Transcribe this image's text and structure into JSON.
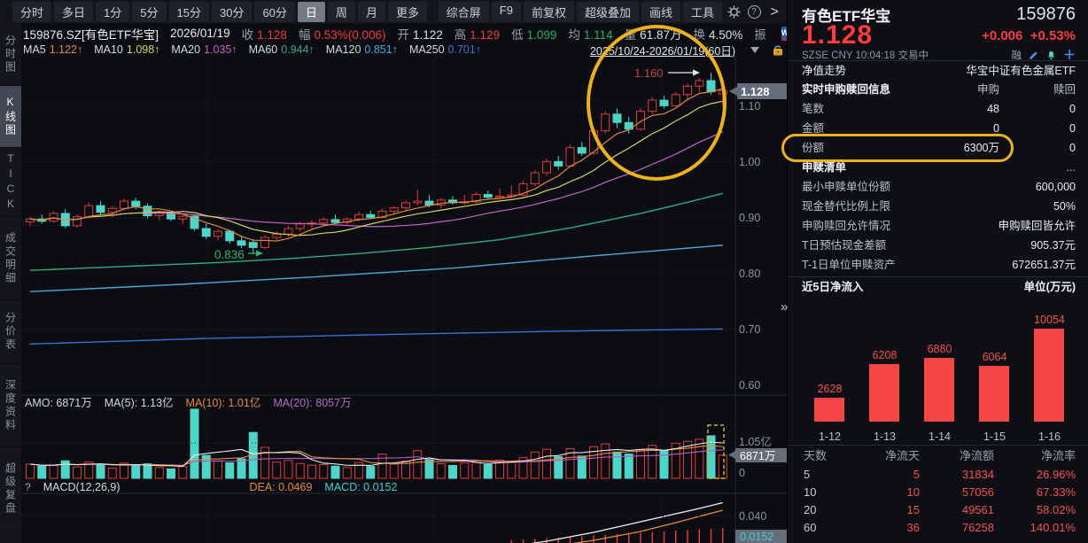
{
  "toolbar": {
    "left_items": [
      "分时",
      "多日",
      "1分",
      "5分",
      "15分",
      "30分",
      "60分",
      "日",
      "周",
      "月",
      "更多"
    ],
    "selected_item": "日",
    "right_items": [
      "综合屏",
      "F9",
      "前复权",
      "超级叠加",
      "画线",
      "工具"
    ],
    "help_icon": "?",
    "more_arrow": ">"
  },
  "info_row": {
    "symbol": "159876.SZ[有色ETF华宝]",
    "date": "2026/01/19",
    "fields": [
      {
        "label": "收",
        "value": "1.128",
        "color": "c-red"
      },
      {
        "label": "幅",
        "value": "0.53%(0.006)",
        "color": "c-red"
      },
      {
        "label": "开",
        "value": "1.122",
        "color": "c-white"
      },
      {
        "label": "高",
        "value": "1.129",
        "color": "c-red"
      },
      {
        "label": "低",
        "value": "1.099",
        "color": "c-green"
      },
      {
        "label": "均",
        "value": "1.114",
        "color": "c-green"
      },
      {
        "label": "量",
        "value": "61.87万",
        "color": "c-white"
      },
      {
        "label": "换",
        "value": "4.50%",
        "color": "c-white"
      },
      {
        "label": "振",
        "value": "",
        "color": "c-white"
      }
    ],
    "wp_badge": "WP"
  },
  "ma_row": {
    "items": [
      {
        "label": "MA5",
        "value": "1.122↑",
        "color": "#e08a3c"
      },
      {
        "label": "MA10",
        "value": "1.098↑",
        "color": "#d8d060"
      },
      {
        "label": "MA20",
        "value": "1.035↑",
        "color": "#c75fc7"
      },
      {
        "label": "MA60",
        "value": "0.944↑",
        "color": "#2fae7a"
      },
      {
        "label": "MA120",
        "value": "0.851↑",
        "color": "#4aa8dc"
      },
      {
        "label": "MA250",
        "value": "0.701↑",
        "color": "#3b6fd4"
      }
    ],
    "date_range": "2025/10/24-2026/01/19(60日)"
  },
  "sidebar": {
    "tabs": [
      {
        "label": "分时图",
        "selected": false
      },
      {
        "label": "K线图",
        "selected": true
      },
      {
        "label": "TICK",
        "selected": false
      },
      {
        "label": "成交明细",
        "selected": false
      },
      {
        "label": "分价表",
        "selected": false
      },
      {
        "label": "深度资料",
        "selected": false
      },
      {
        "label": "超级复盘",
        "selected": false
      }
    ]
  },
  "vol_legend": {
    "amo": "AMO: 6871万",
    "ma5": "MA(5): 1.13亿",
    "ma10": "MA(10): 1.01亿",
    "ma20": "MA(20): 8057万"
  },
  "macd_legend": {
    "help": "?",
    "name": "MACD(12,26,9)",
    "dea": "DEA: 0.0469",
    "macd": "MACD: 0.0152"
  },
  "chart_data": [
    {
      "type": "candlestick",
      "title": "159876.SZ 日K",
      "x_range": [
        "2025/10/24",
        "2026/01/19"
      ],
      "days": 60,
      "y_axis_ticks": [
        1.1,
        1.0,
        0.9,
        0.8,
        0.7,
        0.6
      ],
      "price_tag": "1.128",
      "annotations": {
        "high_label": "1.160",
        "low_label": "0.836"
      },
      "colors": {
        "up": "#e23b3b",
        "down": "#4ed5c8",
        "ma5": "#e08a3c",
        "ma10": "#d8d060",
        "ma20": "#c75fc7",
        "ma60": "#2fae7a",
        "ma120": "#4aa8dc",
        "ma250": "#3b6fd4",
        "volma5": "#e8eaee",
        "volma10": "#e78a3c",
        "volma20": "#b05fc0",
        "dif": "#f0f2f5",
        "dea": "#e78a3c",
        "hist": "#e23b3b",
        "circle": "#edb11c"
      },
      "candles": [
        [
          0.893,
          0.902,
          0.885,
          0.898
        ],
        [
          0.898,
          0.906,
          0.89,
          0.894
        ],
        [
          0.894,
          0.912,
          0.892,
          0.908
        ],
        [
          0.908,
          0.916,
          0.882,
          0.886
        ],
        [
          0.886,
          0.906,
          0.883,
          0.902
        ],
        [
          0.902,
          0.928,
          0.899,
          0.922
        ],
        [
          0.922,
          0.93,
          0.906,
          0.91
        ],
        [
          0.91,
          0.921,
          0.901,
          0.917
        ],
        [
          0.917,
          0.934,
          0.913,
          0.93
        ],
        [
          0.93,
          0.936,
          0.916,
          0.921
        ],
        [
          0.921,
          0.926,
          0.899,
          0.904
        ],
        [
          0.904,
          0.913,
          0.896,
          0.909
        ],
        [
          0.909,
          0.911,
          0.894,
          0.898
        ],
        [
          0.898,
          0.906,
          0.889,
          0.903
        ],
        [
          0.903,
          0.906,
          0.877,
          0.881
        ],
        [
          0.881,
          0.89,
          0.862,
          0.867
        ],
        [
          0.867,
          0.88,
          0.86,
          0.876
        ],
        [
          0.876,
          0.879,
          0.854,
          0.859
        ],
        [
          0.859,
          0.868,
          0.846,
          0.851
        ],
        [
          0.856,
          0.862,
          0.836,
          0.847
        ],
        [
          0.847,
          0.869,
          0.844,
          0.865
        ],
        [
          0.865,
          0.876,
          0.858,
          0.871
        ],
        [
          0.871,
          0.886,
          0.866,
          0.881
        ],
        [
          0.881,
          0.893,
          0.876,
          0.889
        ],
        [
          0.889,
          0.896,
          0.881,
          0.891
        ],
        [
          0.891,
          0.901,
          0.886,
          0.897
        ],
        [
          0.897,
          0.906,
          0.89,
          0.892
        ],
        [
          0.892,
          0.901,
          0.886,
          0.898
        ],
        [
          0.898,
          0.911,
          0.894,
          0.906
        ],
        [
          0.906,
          0.913,
          0.898,
          0.901
        ],
        [
          0.901,
          0.916,
          0.899,
          0.912
        ],
        [
          0.912,
          0.921,
          0.906,
          0.918
        ],
        [
          0.918,
          0.931,
          0.913,
          0.927
        ],
        [
          0.927,
          0.951,
          0.922,
          0.93
        ],
        [
          0.93,
          0.941,
          0.919,
          0.923
        ],
        [
          0.923,
          0.936,
          0.918,
          0.932
        ],
        [
          0.932,
          0.939,
          0.924,
          0.927
        ],
        [
          0.927,
          0.941,
          0.924,
          0.929
        ],
        [
          0.929,
          0.946,
          0.926,
          0.942
        ],
        [
          0.942,
          0.949,
          0.934,
          0.937
        ],
        [
          0.937,
          0.953,
          0.934,
          0.939
        ],
        [
          0.939,
          0.958,
          0.936,
          0.941
        ],
        [
          0.941,
          0.966,
          0.939,
          0.961
        ],
        [
          0.961,
          0.986,
          0.957,
          0.981
        ],
        [
          0.981,
          1.006,
          0.976,
          1.001
        ],
        [
          1.001,
          1.011,
          0.986,
          0.993
        ],
        [
          0.993,
          1.031,
          0.991,
          1.026
        ],
        [
          1.026,
          1.036,
          1.011,
          1.016
        ],
        [
          1.016,
          1.061,
          1.013,
          1.056
        ],
        [
          1.056,
          1.091,
          1.051,
          1.086
        ],
        [
          1.086,
          1.096,
          1.061,
          1.071
        ],
        [
          1.071,
          1.081,
          1.051,
          1.059
        ],
        [
          1.059,
          1.096,
          1.056,
          1.091
        ],
        [
          1.091,
          1.116,
          1.086,
          1.111
        ],
        [
          1.111,
          1.119,
          1.096,
          1.101
        ],
        [
          1.101,
          1.126,
          1.099,
          1.121
        ],
        [
          1.121,
          1.141,
          1.111,
          1.136
        ],
        [
          1.136,
          1.151,
          1.126,
          1.146
        ],
        [
          1.146,
          1.16,
          1.121,
          1.126
        ],
        [
          1.122,
          1.129,
          1.099,
          1.128
        ]
      ],
      "volumes": [
        4200,
        3600,
        3900,
        5200,
        3400,
        4800,
        4100,
        3000,
        4500,
        3800,
        4300,
        3200,
        2800,
        3500,
        20500,
        6800,
        5200,
        4600,
        5800,
        13600,
        9200,
        4800,
        5300,
        4400,
        3900,
        4100,
        3600,
        3200,
        4700,
        3500,
        7200,
        4200,
        5100,
        8200,
        5600,
        4300,
        3800,
        4600,
        5200,
        4100,
        5400,
        4700,
        6200,
        7800,
        8600,
        6400,
        8800,
        6600,
        9400,
        10200,
        7800,
        7200,
        8400,
        9800,
        8200,
        10400,
        11000,
        11600,
        12600,
        6871
      ],
      "volume_axis": {
        "mid": "1.05亿",
        "current": "6871万",
        "zero": "0"
      },
      "ma_static": {
        "ma60": [
          [
            0,
            0.806
          ],
          [
            8,
            0.813
          ],
          [
            16,
            0.82
          ],
          [
            22,
            0.827
          ],
          [
            28,
            0.836
          ],
          [
            34,
            0.847
          ],
          [
            40,
            0.861
          ],
          [
            46,
            0.882
          ],
          [
            52,
            0.908
          ],
          [
            56,
            0.928
          ],
          [
            59,
            0.944
          ]
        ],
        "ma120": [
          [
            0,
            0.768
          ],
          [
            12,
            0.78
          ],
          [
            24,
            0.794
          ],
          [
            36,
            0.81
          ],
          [
            48,
            0.832
          ],
          [
            59,
            0.851
          ]
        ],
        "ma250": [
          [
            0,
            0.674
          ],
          [
            15,
            0.684
          ],
          [
            30,
            0.691
          ],
          [
            45,
            0.697
          ],
          [
            59,
            0.701
          ]
        ]
      },
      "macd": {
        "axis_label": "0.040",
        "current": "0.0152",
        "dif": [
          [
            0,
            -0.006
          ],
          [
            6,
            -0.01
          ],
          [
            12,
            -0.016
          ],
          [
            18,
            -0.02
          ],
          [
            24,
            -0.012
          ],
          [
            30,
            -0.006
          ],
          [
            36,
            -0.002
          ],
          [
            40,
            0.004
          ],
          [
            44,
            0.012
          ],
          [
            48,
            0.022
          ],
          [
            52,
            0.034
          ],
          [
            55,
            0.043
          ],
          [
            57,
            0.049
          ],
          [
            59,
            0.0555
          ]
        ],
        "dea": [
          [
            0,
            -0.004
          ],
          [
            8,
            -0.009
          ],
          [
            16,
            -0.015
          ],
          [
            24,
            -0.013
          ],
          [
            32,
            -0.008
          ],
          [
            40,
            -0.001
          ],
          [
            44,
            0.005
          ],
          [
            48,
            0.013
          ],
          [
            52,
            0.023
          ],
          [
            55,
            0.033
          ],
          [
            57,
            0.04
          ],
          [
            59,
            0.047
          ]
        ]
      }
    },
    {
      "type": "bar",
      "title": "近5日净流入",
      "unit": "单位(万元)",
      "categories": [
        "1-12",
        "1-13",
        "1-14",
        "1-15",
        "1-16"
      ],
      "values": [
        2628,
        6208,
        6880,
        6064,
        10054
      ],
      "bar_color": "#f54545"
    }
  ],
  "quote": {
    "name": "有色ETF华宝",
    "code": "159876",
    "price": "1.128",
    "change": "+0.006",
    "change_pct": "+0.53%",
    "exchange_line": "SZSE  CNY  10:04:18  交易中",
    "margin_flag": "融",
    "nav_label": "净值走势",
    "nav_value": "华宝中证有色金属ETF",
    "rt_table": {
      "header": [
        "实时申购赎回信息",
        "申购",
        "赎回"
      ],
      "rows": [
        [
          "笔数",
          "48",
          "0"
        ],
        [
          "金额",
          "0",
          "0"
        ],
        [
          "份额",
          "6300万",
          "0"
        ]
      ],
      "highlight_row": 2
    },
    "list_header": {
      "title": "申赎清单",
      "more": "..."
    },
    "kv_rows": [
      [
        "最小申赎单位份额",
        "600,000"
      ],
      [
        "现金替代比例上限",
        "50%"
      ],
      [
        "申购赎回允许情况",
        "申购赎回皆允许"
      ],
      [
        "T日预估现金差额",
        "905.37元"
      ],
      [
        "T-1日单位申赎资产",
        "672651.37元"
      ]
    ],
    "flow_section": {
      "title": "近5日净流入",
      "unit": "单位(万元)"
    },
    "flow_table": {
      "header": [
        "天数",
        "净流天",
        "净流额",
        "净流率"
      ],
      "rows": [
        [
          "5",
          "5",
          "31834",
          "26.96%"
        ],
        [
          "10",
          "10",
          "57056",
          "67.33%"
        ],
        [
          "20",
          "15",
          "49561",
          "58.02%"
        ],
        [
          "60",
          "36",
          "76258",
          "140.01%"
        ]
      ]
    }
  }
}
